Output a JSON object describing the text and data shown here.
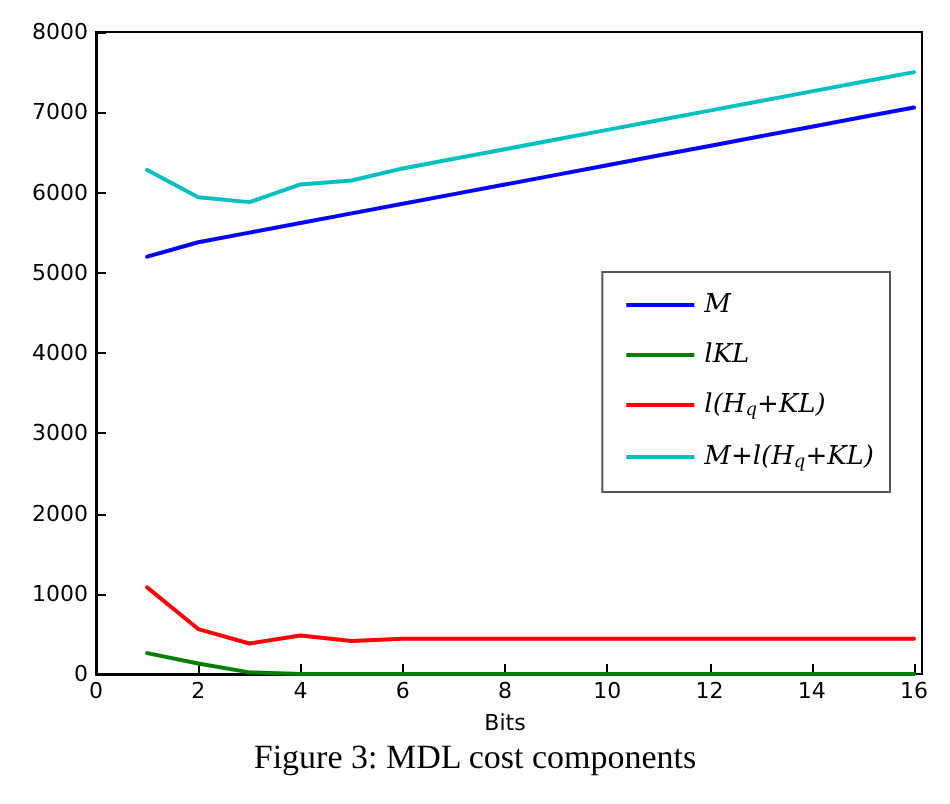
{
  "chart_data": {
    "type": "line",
    "title": "Figure 3: MDL cost components",
    "xlabel": "Bits",
    "x": [
      1,
      2,
      3,
      4,
      5,
      6,
      7,
      8,
      9,
      10,
      11,
      12,
      13,
      14,
      15,
      16
    ],
    "series": [
      {
        "name": "M",
        "color": "#0000ff",
        "values": [
          5200,
          5380,
          5500,
          5620,
          5740,
          5860,
          5980,
          6100,
          6220,
          6340,
          6460,
          6580,
          6700,
          6820,
          6940,
          7060
        ]
      },
      {
        "name": "lKL",
        "color": "#008000",
        "values": [
          260,
          130,
          20,
          0,
          0,
          0,
          0,
          0,
          0,
          0,
          0,
          0,
          0,
          0,
          0,
          0
        ]
      },
      {
        "name": "l(H$_{q}$+KL)",
        "color": "#ff0000",
        "values": [
          1080,
          560,
          380,
          480,
          410,
          440,
          440,
          440,
          440,
          440,
          440,
          440,
          440,
          440,
          440,
          440
        ]
      },
      {
        "name": "M+l(H$_{q}$+KL)",
        "color": "#00bfbf",
        "values": [
          6280,
          5940,
          5880,
          6100,
          6150,
          6300,
          6420,
          6540,
          6660,
          6780,
          6900,
          7020,
          7140,
          7260,
          7380,
          7500
        ]
      }
    ],
    "xlim": [
      0,
      16
    ],
    "xticks": [
      0,
      2,
      4,
      6,
      8,
      10,
      12,
      14,
      16
    ],
    "ylim": [
      0,
      8000
    ],
    "yticks": [
      0,
      1000,
      2000,
      3000,
      4000,
      5000,
      6000,
      7000,
      8000
    ],
    "grid": false,
    "legend": "right",
    "marker": "none",
    "line_style": "solid"
  }
}
